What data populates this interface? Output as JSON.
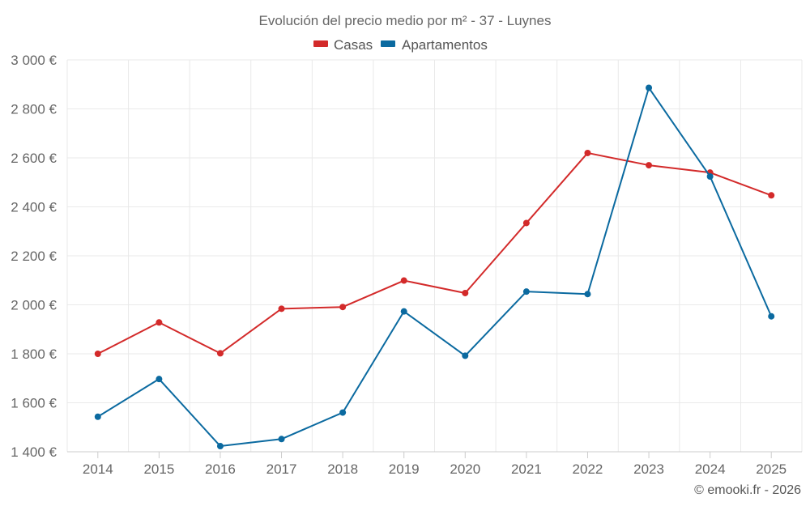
{
  "chart_data": {
    "type": "line",
    "title": "Evolución del precio medio por m² - 37 - Luynes",
    "categories": [
      "2014",
      "2015",
      "2016",
      "2017",
      "2018",
      "2019",
      "2020",
      "2021",
      "2022",
      "2023",
      "2024",
      "2025"
    ],
    "series": [
      {
        "name": "Casas",
        "color": "#d32a2a",
        "values": [
          1800,
          1928,
          1802,
          1984,
          1991,
          2099,
          2048,
          2334,
          2620,
          2570,
          2540,
          2447
        ]
      },
      {
        "name": "Apartamentos",
        "color": "#0b6aa0",
        "values": [
          1543,
          1697,
          1423,
          1452,
          1560,
          1973,
          1792,
          2054,
          2044,
          2886,
          2524,
          1953
        ]
      }
    ],
    "ylim": [
      1400,
      3000
    ],
    "yticks": [
      1400,
      1600,
      1800,
      2000,
      2200,
      2400,
      2600,
      2800,
      3000
    ],
    "ytick_labels": [
      "1 400 €",
      "1 600 €",
      "1 800 €",
      "2 000 €",
      "2 200 €",
      "2 400 €",
      "2 600 €",
      "2 800 €",
      "3 000 €"
    ],
    "xlabel": "",
    "ylabel": "",
    "grid": true,
    "legend_position": "top-center",
    "credit": "© emooki.fr - 2026"
  }
}
